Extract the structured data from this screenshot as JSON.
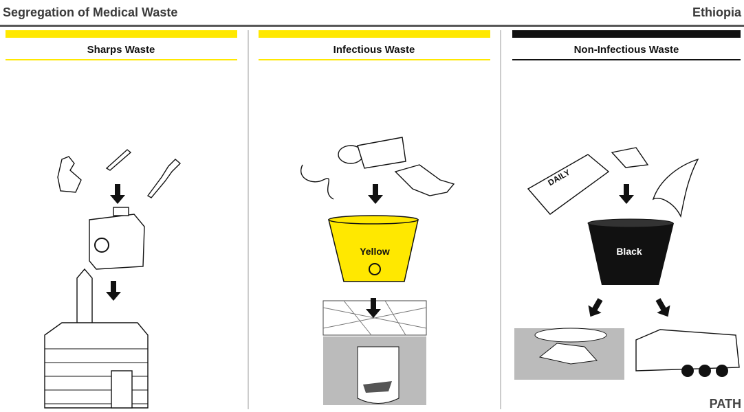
{
  "header": {
    "title": "Segregation of Medical Waste",
    "country": "Ethiopia"
  },
  "columns": [
    {
      "title": "Sharps Waste"
    },
    {
      "title": "Infectious Waste",
      "bin_label": "Yellow"
    },
    {
      "title": "Non-Infectious Waste",
      "bin_label": "Black",
      "newspaper_label": "DAILY"
    }
  ],
  "logo": "PATH"
}
